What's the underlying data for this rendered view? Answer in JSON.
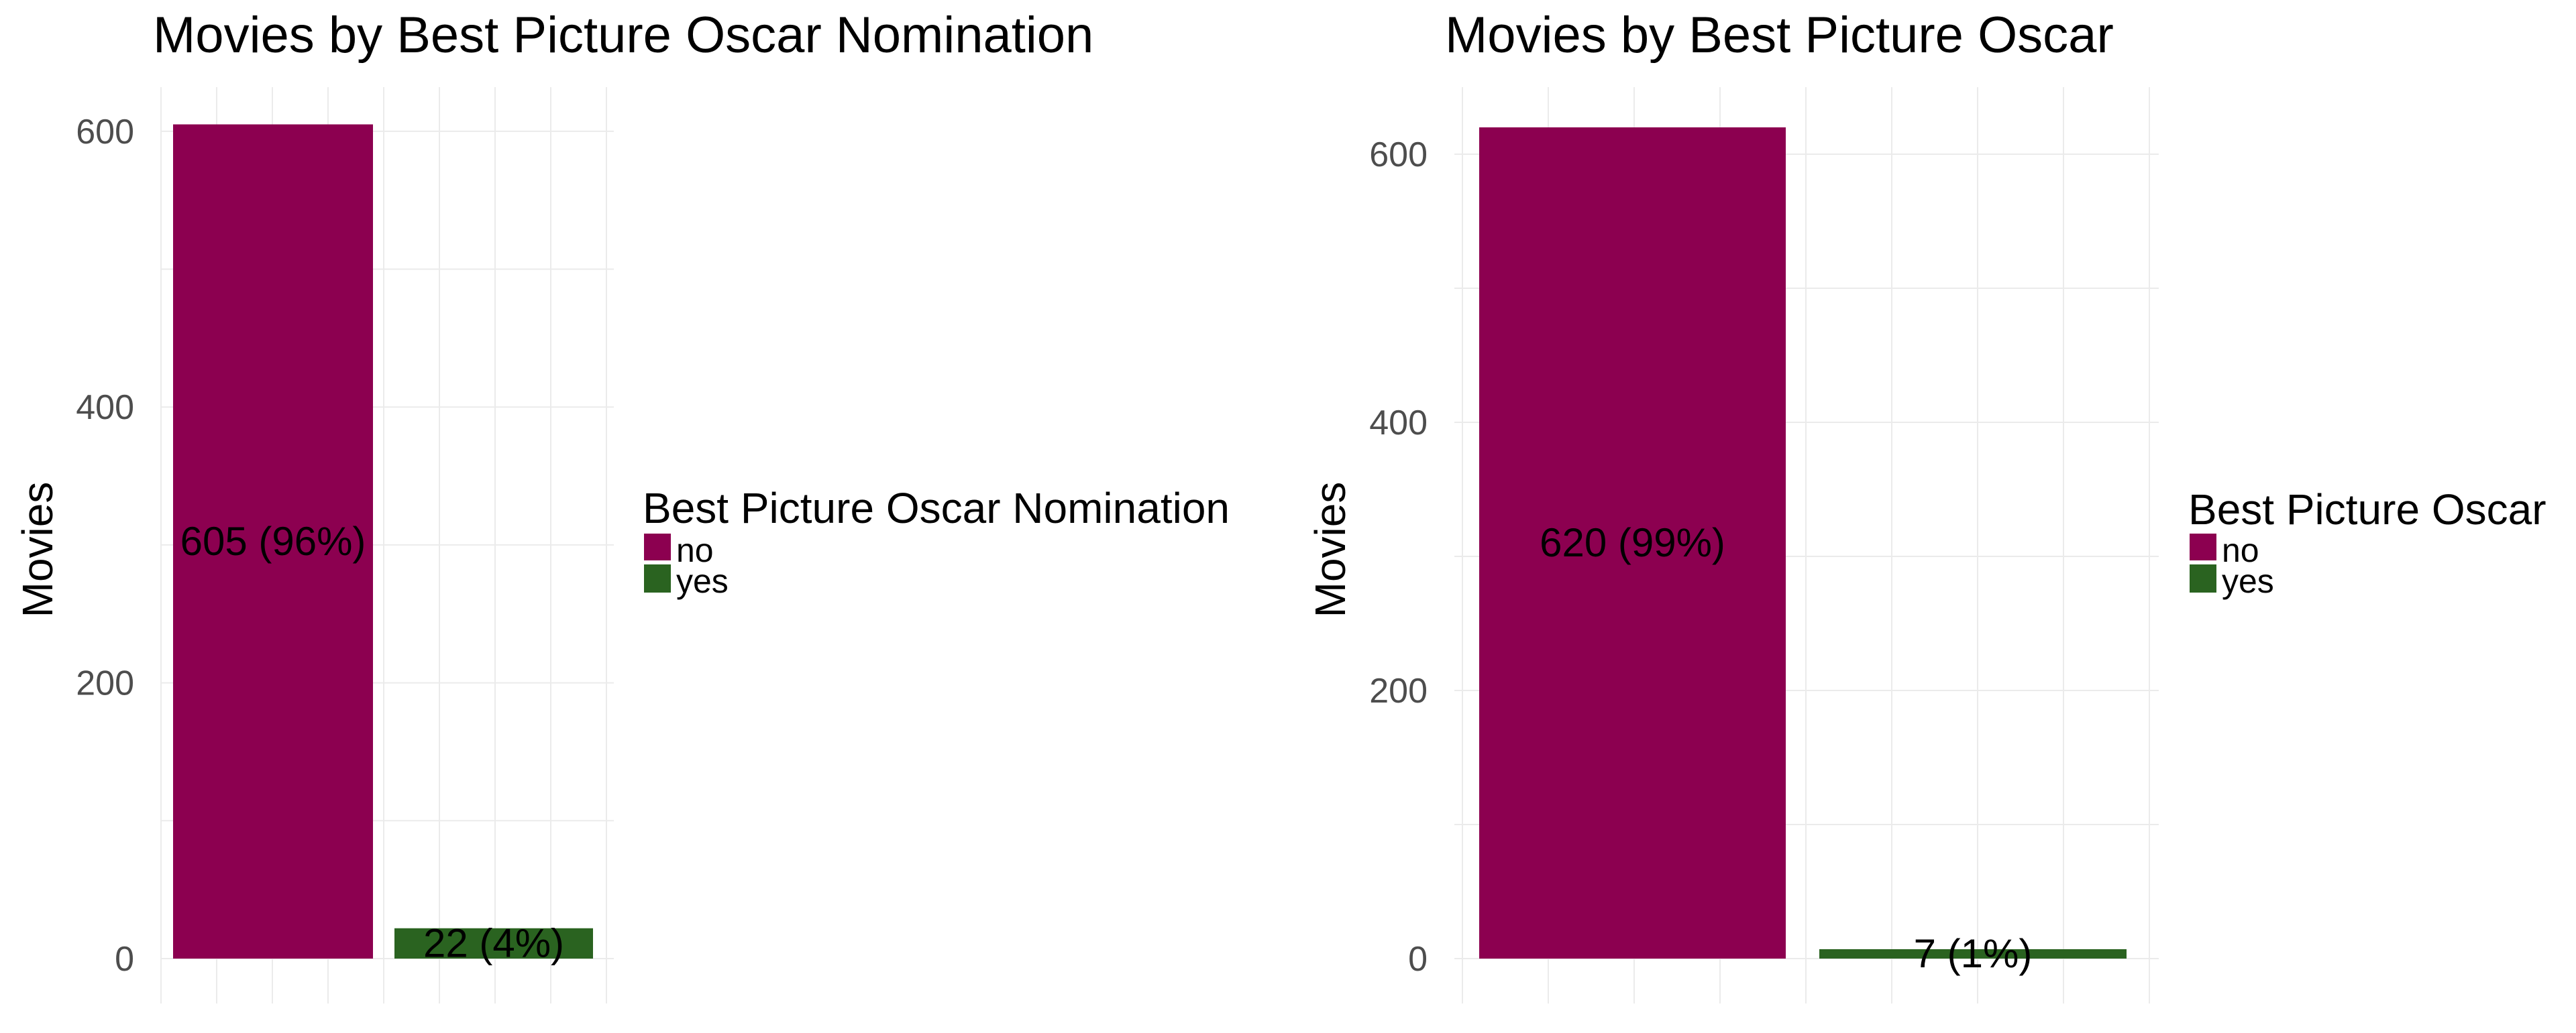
{
  "chart_data": [
    {
      "type": "bar",
      "title": "Movies by Best Picture Oscar Nomination",
      "xlabel": "",
      "ylabel": "Movies",
      "ylim": [
        0,
        632
      ],
      "yticks": [
        0,
        200,
        400,
        600
      ],
      "grid": true,
      "legend": {
        "title": "Best Picture Oscar Nomination",
        "position": "right",
        "items": [
          "no",
          "yes"
        ]
      },
      "categories": [
        "no",
        "yes"
      ],
      "values": [
        605,
        22
      ],
      "labels": [
        "605 (96%)",
        "22 (4%)"
      ],
      "colors": [
        "#8c0050",
        "#2a6320"
      ]
    },
    {
      "type": "bar",
      "title": "Movies by Best Picture Oscar",
      "xlabel": "",
      "ylabel": "Movies",
      "ylim": [
        0,
        650
      ],
      "yticks": [
        0,
        200,
        400,
        600
      ],
      "grid": true,
      "legend": {
        "title": "Best Picture Oscar",
        "position": "right",
        "items": [
          "no",
          "yes"
        ]
      },
      "categories": [
        "no",
        "yes"
      ],
      "values": [
        620,
        7
      ],
      "labels": [
        "620 (99%)",
        "7 (1%)"
      ],
      "colors": [
        "#8c0050",
        "#2a6320"
      ]
    }
  ]
}
